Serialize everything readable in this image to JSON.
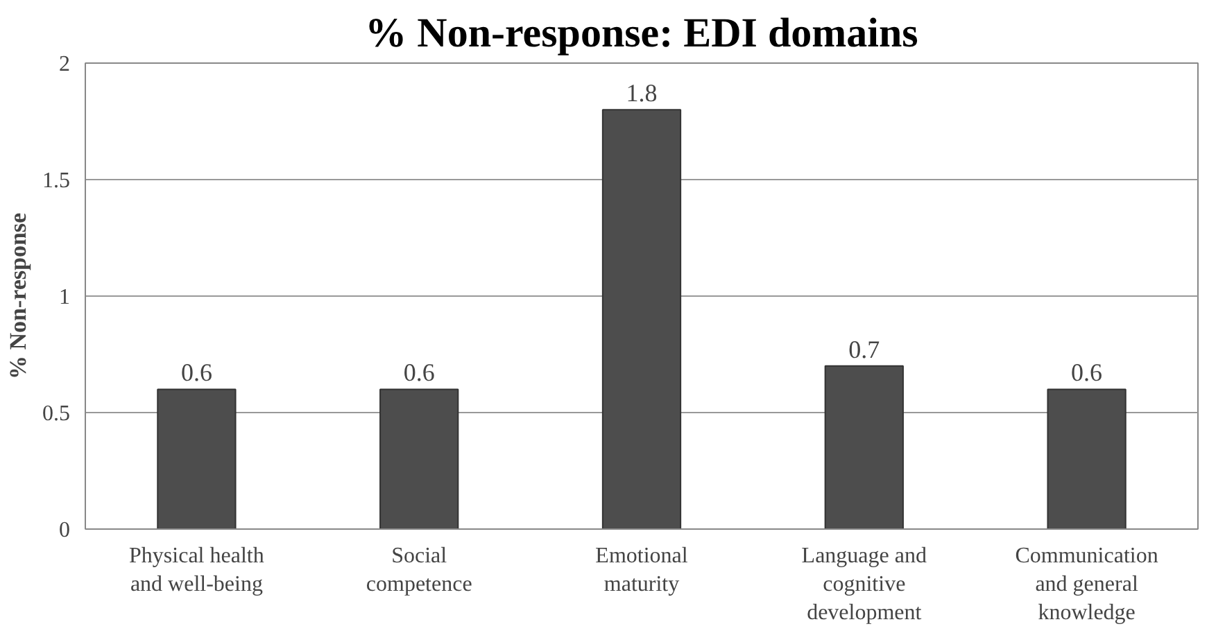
{
  "chart_data": {
    "type": "bar",
    "title": "% Non-response: EDI domains",
    "ylabel": "% Non-response",
    "categories": [
      "Physical health and well-being",
      "Social competence",
      "Emotional maturity",
      "Language and cognitive development",
      "Communication and general knowledge"
    ],
    "values": [
      0.6,
      0.6,
      1.8,
      0.7,
      0.6
    ],
    "color": "#4d4d4d",
    "ylim": [
      0,
      2
    ],
    "yticks": [
      0,
      0.5,
      1,
      1.5,
      2
    ],
    "grid": "y",
    "data_labels": true
  }
}
